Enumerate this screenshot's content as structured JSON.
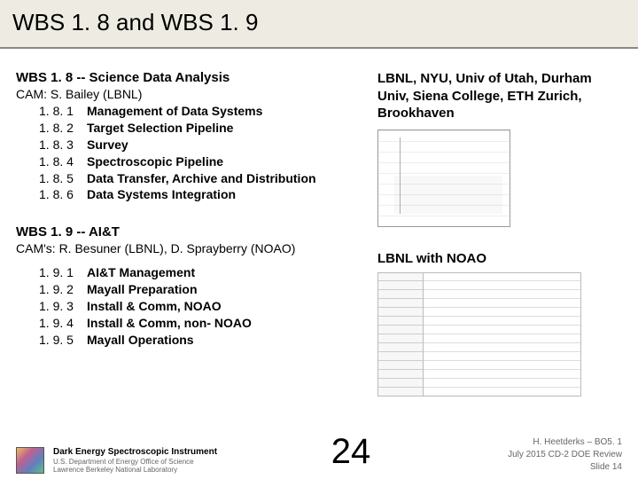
{
  "title": "WBS 1. 8  and  WBS 1. 9",
  "section1": {
    "heading": "WBS 1. 8  --  Science Data Analysis",
    "cam": "CAM: S. Bailey (LBNL)",
    "items": [
      {
        "num": "1. 8. 1",
        "label": "Management of Data Systems"
      },
      {
        "num": "1. 8. 2",
        "label": "Target Selection Pipeline"
      },
      {
        "num": "1. 8. 3",
        "label": "Survey"
      },
      {
        "num": "1. 8. 4",
        "label": "Spectroscopic Pipeline"
      },
      {
        "num": "1. 8. 5",
        "label": "Data Transfer, Archive and Distribution"
      },
      {
        "num": "1. 8. 6",
        "label": "Data Systems Integration"
      }
    ],
    "institutions": "LBNL, NYU, Univ of Utah, Durham Univ, Siena College, ETH Zurich,  Brookhaven"
  },
  "section2": {
    "heading": "WBS 1. 9  --  AI&T",
    "cam": "CAM's: R. Besuner (LBNL), D. Sprayberry (NOAO)",
    "items": [
      {
        "num": "1. 9. 1",
        "label": "AI&T Management"
      },
      {
        "num": "1. 9. 2",
        "label": "Mayall Preparation"
      },
      {
        "num": "1. 9. 3",
        "label": "Install & Comm, NOAO"
      },
      {
        "num": "1. 9. 4",
        "label": "Install & Comm, non- NOAO"
      },
      {
        "num": "1. 9. 5",
        "label": "Mayall Operations"
      }
    ],
    "institutions": "LBNL with NOAO"
  },
  "footer": {
    "title": "Dark Energy Spectroscopic Instrument",
    "line1": "U.S. Department of Energy Office of Science",
    "line2": "Lawrence Berkeley National Laboratory",
    "page": "24",
    "author": "H. Heetderks – BO5. 1",
    "event": "July 2015 CD-2 DOE Review",
    "slide": "Slide 14"
  }
}
